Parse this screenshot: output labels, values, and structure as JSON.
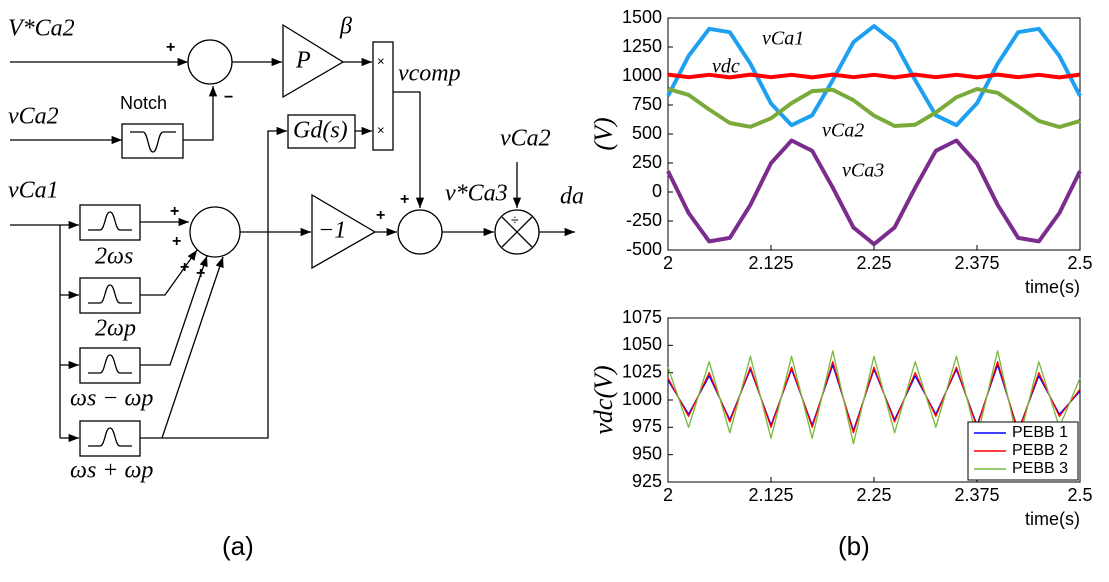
{
  "diagram": {
    "labels": {
      "v_ref": "V*Ca2",
      "v_ca2_in": "vCa2",
      "notch": "Notch",
      "gain": "P",
      "beta": "β",
      "v_comp": "vcomp",
      "gd": "Gd(s)",
      "v_ca1": "vCa1",
      "f1": "2ωs",
      "f2": "2ωp",
      "f3": "ωs − ωp",
      "f4": "ωs + ωp",
      "neg": "−1",
      "v_ca3_ref": "v*Ca3",
      "v_ca2_div": "vCa2",
      "duty": "da"
    },
    "signs": {
      "plus": "+",
      "minus": "−",
      "times": "×",
      "divide": "÷"
    },
    "caption": "(a)"
  },
  "caption_b": "(b)",
  "chart_data": [
    {
      "type": "line",
      "xlabel": "time(s)",
      "ylabel": "(V)",
      "x": [
        2,
        2.025,
        2.05,
        2.075,
        2.1,
        2.125,
        2.15,
        2.175,
        2.2,
        2.225,
        2.25,
        2.275,
        2.3,
        2.325,
        2.35,
        2.375,
        2.4,
        2.425,
        2.45,
        2.475,
        2.5
      ],
      "xlim": [
        2,
        2.5
      ],
      "xticks": [
        2,
        2.125,
        2.25,
        2.375,
        2.5
      ],
      "ylim": [
        -500,
        1500
      ],
      "yticks": [
        1500,
        1250,
        1000,
        750,
        500,
        250,
        0,
        -250,
        -500
      ],
      "series": [
        {
          "name": "vCa1",
          "color": "#1ea0f0",
          "values": [
            828,
            1173,
            1407,
            1378,
            1106,
            763,
            576,
            661,
            965,
            1291,
            1430,
            1291,
            965,
            661,
            576,
            765,
            1105,
            1378,
            1407,
            1173,
            828
          ]
        },
        {
          "name": "vdc",
          "color": "#ff0000",
          "values": [
            1012,
            990,
            1010,
            988,
            1012,
            990,
            1010,
            988,
            1012,
            990,
            1010,
            988,
            1012,
            990,
            1010,
            988,
            1012,
            990,
            1010,
            988,
            1012
          ]
        },
        {
          "name": "vCa2",
          "color": "#7aab3a",
          "values": [
            890,
            837,
            711,
            595,
            562,
            635,
            766,
            870,
            881,
            791,
            659,
            569,
            580,
            685,
            816,
            888,
            855,
            738,
            613,
            560,
            613
          ]
        },
        {
          "name": "vCa3",
          "color": "#7b2d8e",
          "values": [
            180,
            -181,
            -426,
            -396,
            -111,
            248,
            444,
            355,
            37,
            -305,
            -450,
            -305,
            37,
            355,
            444,
            246,
            -110,
            -396,
            -426,
            -181,
            180
          ]
        }
      ]
    },
    {
      "type": "line",
      "xlabel": "time(s)",
      "ylabel": "vdc(V)",
      "x": [
        2,
        2.025,
        2.05,
        2.075,
        2.1,
        2.125,
        2.15,
        2.175,
        2.2,
        2.225,
        2.25,
        2.275,
        2.3,
        2.325,
        2.35,
        2.375,
        2.4,
        2.425,
        2.45,
        2.475,
        2.5
      ],
      "xlim": [
        2,
        2.5
      ],
      "xticks": [
        2,
        2.125,
        2.25,
        2.375,
        2.5
      ],
      "ylim": [
        925,
        1075
      ],
      "yticks": [
        1075,
        1050,
        1025,
        1000,
        975,
        950,
        925
      ],
      "legend": "lower right",
      "series": [
        {
          "name": "PEBB 1",
          "color": "#0000ff",
          "values": [
            1018,
            987,
            1022,
            982,
            1028,
            977,
            1028,
            977,
            1032,
            972,
            1028,
            982,
            1022,
            987,
            1028,
            977,
            1032,
            972,
            1022,
            987,
            1008
          ]
        },
        {
          "name": "PEBB 2",
          "color": "#ff0000",
          "values": [
            1020,
            985,
            1025,
            980,
            1030,
            975,
            1030,
            975,
            1035,
            970,
            1030,
            980,
            1025,
            985,
            1030,
            975,
            1035,
            970,
            1025,
            985,
            1010
          ]
        },
        {
          "name": "PEBB 3",
          "color": "#77b93a",
          "values": [
            1030,
            975,
            1035,
            970,
            1040,
            965,
            1040,
            965,
            1045,
            960,
            1040,
            970,
            1035,
            975,
            1040,
            965,
            1045,
            960,
            1035,
            975,
            1020
          ]
        }
      ]
    }
  ]
}
